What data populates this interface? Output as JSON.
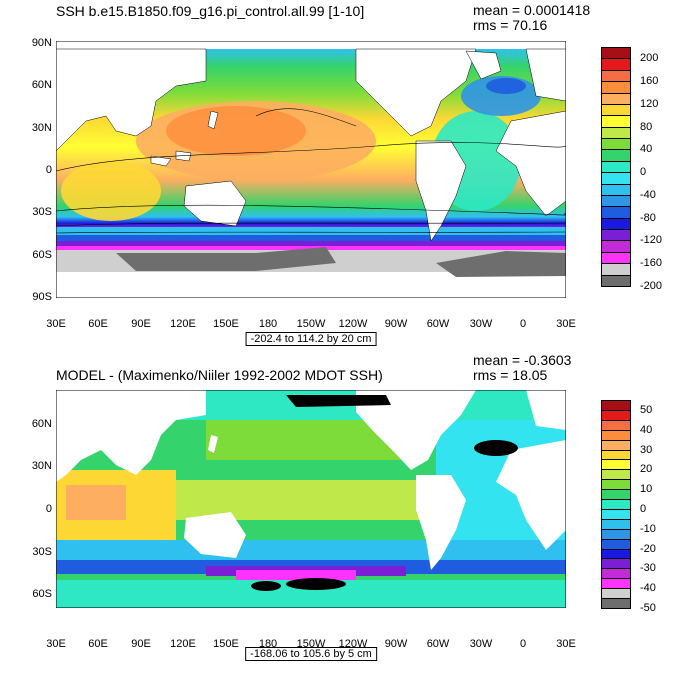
{
  "panels": [
    {
      "title": "SSH b.e15.B1850.f09_g16.pi_control.all.99 [1-10]",
      "mean": "mean = 0.0001418",
      "rms": "rms = 70.16",
      "lat_labels": [
        "90N",
        "60N",
        "30N",
        "0",
        "30S",
        "60S",
        "90S"
      ],
      "lon_labels": [
        "30E",
        "60E",
        "90E",
        "120E",
        "150E",
        "180",
        "150W",
        "120W",
        "90W",
        "60W",
        "30W",
        "0",
        "30E"
      ],
      "contour_info": "-202.4 to 114.2 by 20 cm",
      "colorbar_labels": [
        "200",
        "160",
        "120",
        "80",
        "40",
        "0",
        "-40",
        "-80",
        "-120",
        "-160",
        "-200"
      ]
    },
    {
      "title": "MODEL - (Maximenko/Niiler 1992-2002 MDOT SSH)",
      "mean": "mean = -0.3603",
      "rms": "rms = 18.05",
      "lat_labels": [
        "60N",
        "30N",
        "0",
        "30S",
        "60S"
      ],
      "lon_labels": [
        "30E",
        "60E",
        "90E",
        "120E",
        "150E",
        "180",
        "150W",
        "120W",
        "90W",
        "60W",
        "30W",
        "0",
        "30E"
      ],
      "contour_info": "-168.06 to 105.6 by 5 cm",
      "colorbar_labels": [
        "50",
        "40",
        "30",
        "20",
        "10",
        "0",
        "-10",
        "-20",
        "-30",
        "-40",
        "-50"
      ]
    }
  ],
  "colors": {
    "scale": [
      "#a50f15",
      "#e31a1c",
      "#f46d43",
      "#fd8d3c",
      "#fdae61",
      "#fdd835",
      "#ffff33",
      "#bfe84a",
      "#7ddc3a",
      "#34d36b",
      "#2ee8c4",
      "#33e3f0",
      "#2fc0ef",
      "#2f95e6",
      "#1f5ce0",
      "#1a1adf",
      "#7a1fd6",
      "#c42bd8",
      "#ff33ff",
      "#cfcfcf",
      "#6e6e6e"
    ],
    "land": "#ffffff",
    "ocean_frame": "#ffffff"
  }
}
